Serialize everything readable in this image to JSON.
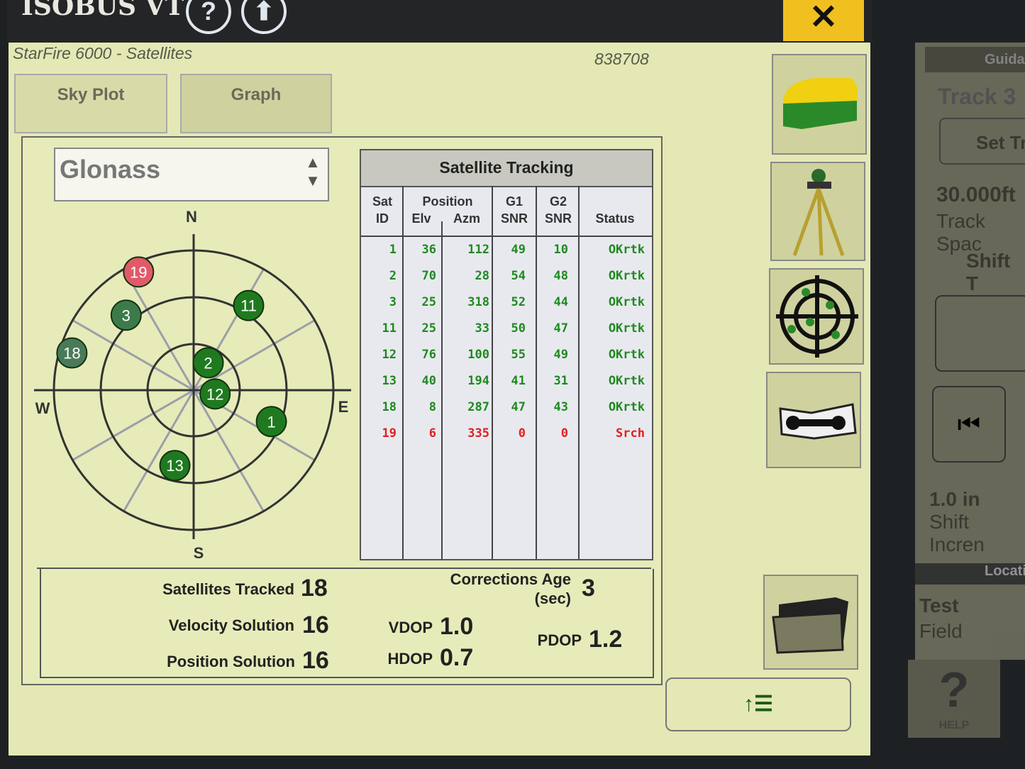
{
  "header": {
    "title": "ISOBUS VT",
    "help_icon": "question-circle-icon",
    "up_icon": "up-arrow-circle-icon",
    "close_label": "✕"
  },
  "page": {
    "subtitle": "StarFire 6000 - Satellites",
    "serial": "838708"
  },
  "tabs": [
    {
      "label": "Sky Plot",
      "active": true
    },
    {
      "label": "Graph",
      "active": false
    }
  ],
  "constellation_select": {
    "value": "Glonass"
  },
  "skyplot": {
    "compass": {
      "n": "N",
      "s": "S",
      "e": "E",
      "w": "W"
    },
    "satellites": [
      {
        "id": "19",
        "elv": 6,
        "azm": 335,
        "color": "#e05a68"
      },
      {
        "id": "3",
        "elv": 25,
        "azm": 318,
        "color": "#3d7a4a"
      },
      {
        "id": "11",
        "elv": 25,
        "azm": 33,
        "color": "#1f7a1f"
      },
      {
        "id": "18",
        "elv": 8,
        "azm": 287,
        "color": "#4a7a5a"
      },
      {
        "id": "2",
        "elv": 70,
        "azm": 28,
        "color": "#1f7a1f"
      },
      {
        "id": "12",
        "elv": 76,
        "azm": 100,
        "color": "#1f7a1f"
      },
      {
        "id": "1",
        "elv": 36,
        "azm": 112,
        "color": "#1f7a1f"
      },
      {
        "id": "13",
        "elv": 40,
        "azm": 194,
        "color": "#1f7a1f"
      }
    ]
  },
  "table": {
    "title": "Satellite Tracking",
    "headers": {
      "sat": "Sat\nID",
      "position": "Position",
      "elv": "Elv",
      "azm": "Azm",
      "g1": "G1\nSNR",
      "g2": "G2\nSNR",
      "status": "Status"
    },
    "rows": [
      [
        "1",
        "36",
        "112",
        "49",
        "10",
        "OKrtk"
      ],
      [
        "2",
        "70",
        "28",
        "54",
        "48",
        "OKrtk"
      ],
      [
        "3",
        "25",
        "318",
        "52",
        "44",
        "OKrtk"
      ],
      [
        "11",
        "25",
        "33",
        "50",
        "47",
        "OKrtk"
      ],
      [
        "12",
        "76",
        "100",
        "55",
        "49",
        "OKrtk"
      ],
      [
        "13",
        "40",
        "194",
        "41",
        "31",
        "OKrtk"
      ],
      [
        "18",
        "8",
        "287",
        "47",
        "43",
        "OKrtk"
      ],
      [
        "19",
        "6",
        "335",
        "0",
        "0",
        "Srch"
      ]
    ],
    "ok_color": "#1e8a1e",
    "search_color": "#e02020"
  },
  "stats": {
    "tracked_label": "Satellites Tracked",
    "tracked": "18",
    "velocity_label": "Velocity Solution",
    "velocity": "16",
    "position_label": "Position Solution",
    "position": "16",
    "corr_label": "Corrections Age",
    "corr_unit": "(sec)",
    "corr": "3",
    "vdop_label": "VDOP",
    "vdop": "1.0",
    "hdop_label": "HDOP",
    "hdop": "0.7",
    "pdop_label": "PDOP",
    "pdop": "1.2"
  },
  "side_buttons": [
    "receiver-icon",
    "tripod-icon",
    "crosshair-satellites-icon",
    "manual-wrench-icon",
    "folder-icon"
  ],
  "bottom_button": {
    "label": "↑☰",
    "icon": "up-list-icon"
  },
  "right_pane": {
    "header": "Guida",
    "track": "Track 3",
    "set_track": "Set Tr",
    "spacing": "30.000ft",
    "spacing_label": "Track Spac",
    "shift": "Shift T",
    "increment": "1.0 in",
    "increment_label": "Shift Incren",
    "location_header": "Locatio",
    "field": "Test",
    "field_label": "Field",
    "help": "HELP"
  }
}
